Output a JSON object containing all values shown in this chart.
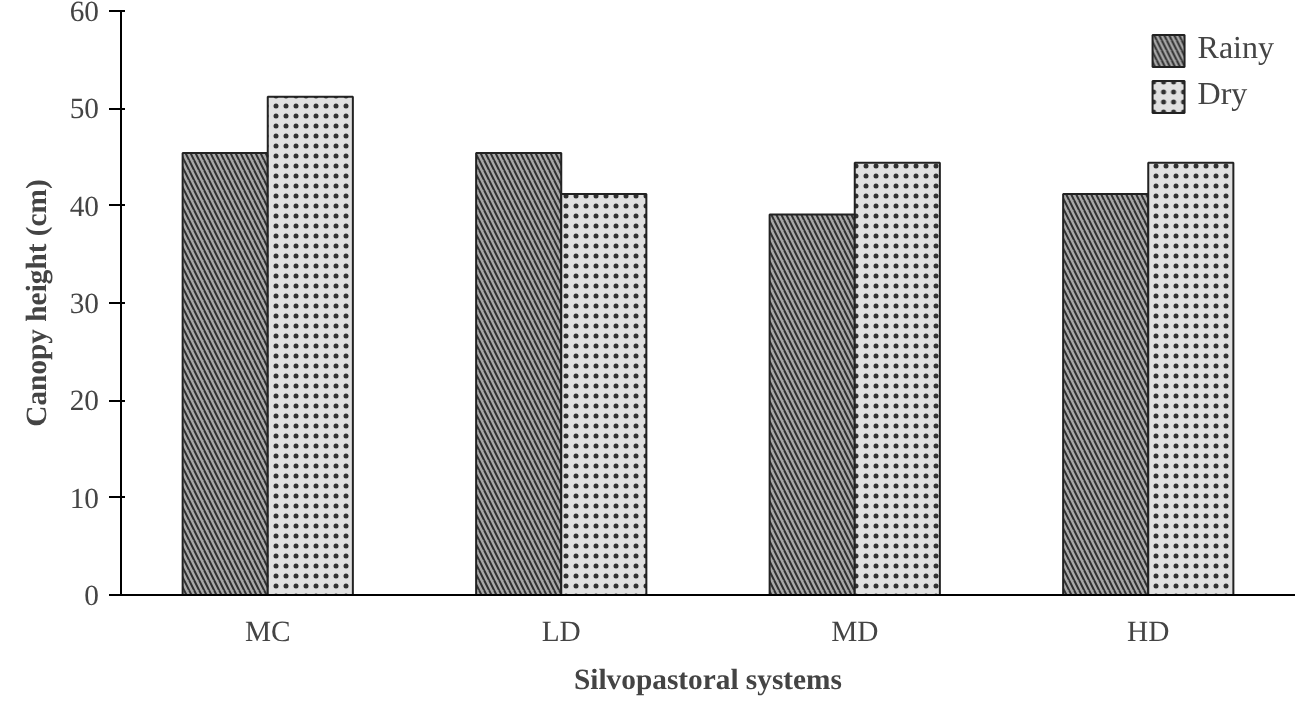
{
  "chart_data": {
    "type": "bar",
    "xlabel": "Silvopastoral systems",
    "ylabel": "Canopy height (cm)",
    "categories": [
      "MC",
      "LD",
      "MD",
      "HD"
    ],
    "series": [
      {
        "name": "Rainy",
        "color": "#a8a8a8",
        "values": [
          45.4,
          45.4,
          39.1,
          41.2
        ]
      },
      {
        "name": "Dry",
        "color": "#e0e0e0",
        "values": [
          51.2,
          41.2,
          44.4,
          44.4
        ]
      }
    ],
    "ylim": [
      0,
      60
    ],
    "yticks": [
      0,
      10,
      20,
      30,
      40,
      50,
      60
    ],
    "grid": false,
    "legend": "top right"
  }
}
